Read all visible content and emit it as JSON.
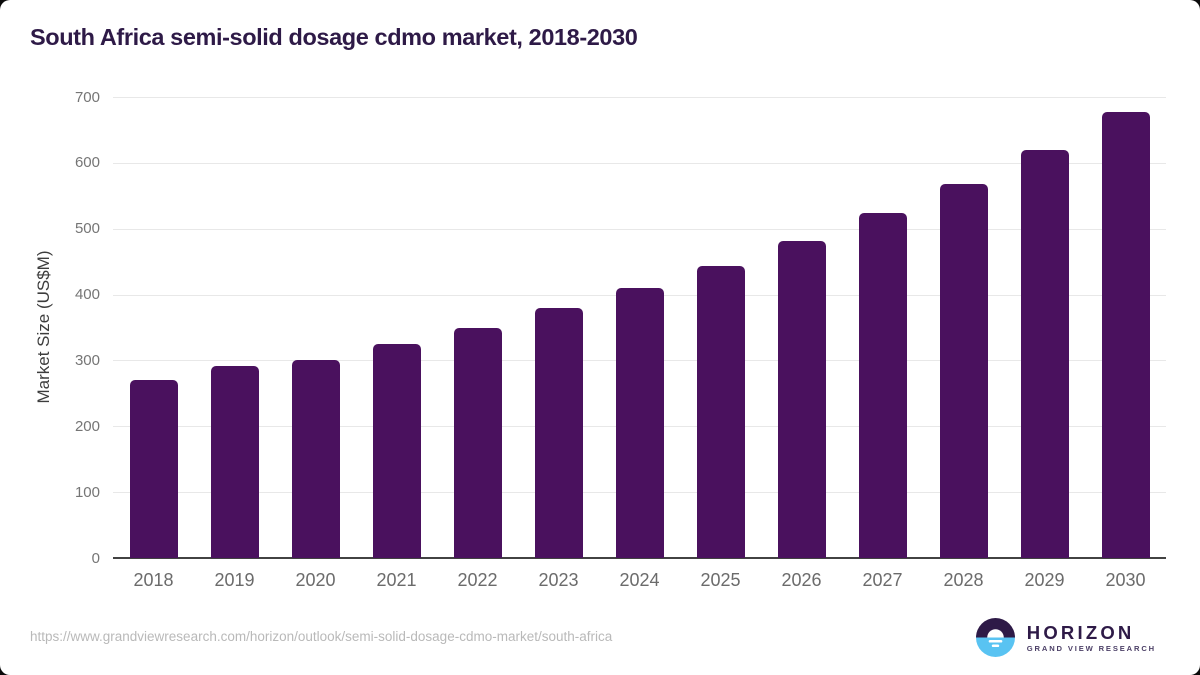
{
  "title": "South Africa semi-solid dosage cdmo market, 2018-2030",
  "chart_data": {
    "type": "bar",
    "title": "South Africa semi-solid dosage cdmo market, 2018-2030",
    "categories": [
      "2018",
      "2019",
      "2020",
      "2021",
      "2022",
      "2023",
      "2024",
      "2025",
      "2026",
      "2027",
      "2028",
      "2029",
      "2030"
    ],
    "values": [
      271,
      292,
      301,
      325,
      349,
      380,
      410,
      443,
      481,
      524,
      568,
      619,
      678
    ],
    "xlabel": "",
    "ylabel": "Market Size (US$M)",
    "ylim": [
      0,
      700
    ],
    "yticks": [
      0,
      100,
      200,
      300,
      400,
      500,
      600,
      700
    ],
    "grid": true,
    "legend": "none",
    "bar_color": "#4a115e"
  },
  "footer": {
    "source_url": "https://www.grandviewresearch.com/horizon/outlook/semi-solid-dosage-cdmo-market/south-africa",
    "logo": {
      "name": "HORIZON",
      "tagline": "GRAND VIEW RESEARCH",
      "icon": "horizon-sunset-circle-icon",
      "brand_dark": "#2e1a47",
      "brand_blue": "#59c3f2"
    }
  },
  "colors": {
    "title": "#2e1a47",
    "bar": "#4a115e",
    "y_tick_label": "#757575",
    "x_tick_label": "#6b6b6b",
    "gridline": "#e8e8e8",
    "axis_line": "#424242",
    "source_url": "#b9b9b9",
    "card_background": "#ffffff"
  }
}
